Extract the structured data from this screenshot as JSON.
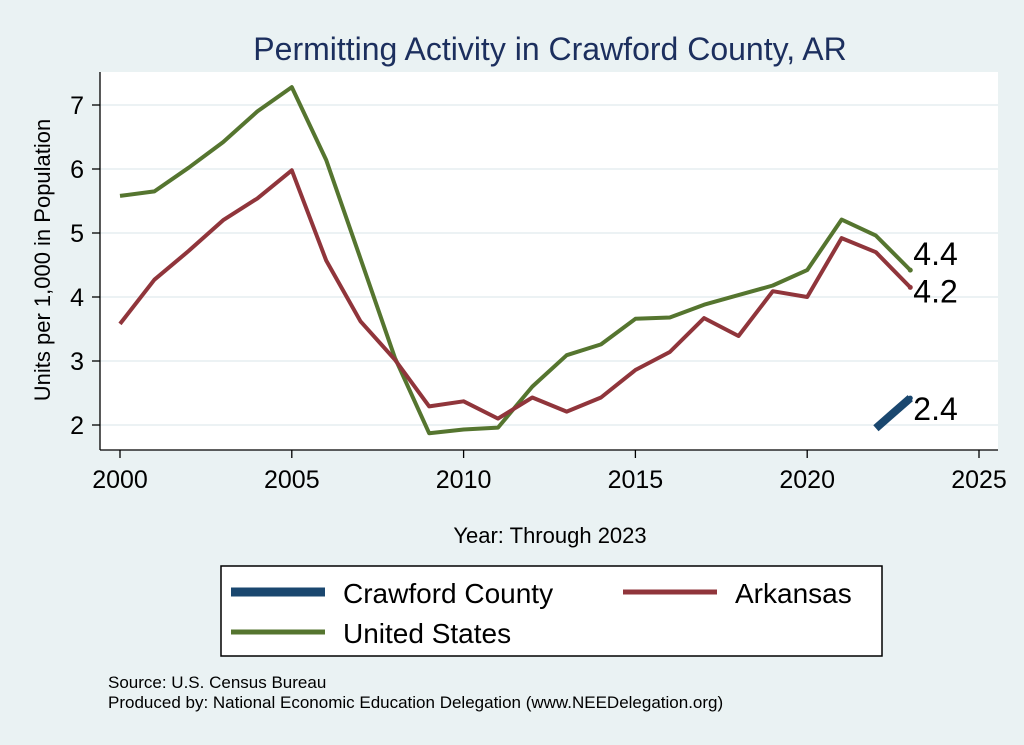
{
  "chart_data": {
    "type": "line",
    "title": "Permitting Activity in Crawford County, AR",
    "xlabel": "Year: Through 2023",
    "ylabel": "Units per 1,000 in Population",
    "xlim": [
      2000,
      2025
    ],
    "ylim": [
      1.8,
      7.4
    ],
    "x_ticks": [
      2000,
      2005,
      2010,
      2015,
      2020,
      2025
    ],
    "y_ticks": [
      2,
      3,
      4,
      5,
      6,
      7
    ],
    "grid": true,
    "legend_position": "bottom",
    "series": [
      {
        "name": "Crawford County",
        "color": "#1a476f",
        "x": [
          2022,
          2023
        ],
        "values": [
          1.95,
          2.42
        ],
        "end_label": "2.4"
      },
      {
        "name": "Arkansas",
        "color": "#90353b",
        "x": [
          2000,
          2001,
          2002,
          2003,
          2004,
          2005,
          2006,
          2007,
          2008,
          2009,
          2010,
          2011,
          2012,
          2013,
          2014,
          2015,
          2016,
          2017,
          2018,
          2019,
          2020,
          2021,
          2022,
          2023
        ],
        "values": [
          3.58,
          4.27,
          4.72,
          5.2,
          5.54,
          5.98,
          4.57,
          3.62,
          3.02,
          2.29,
          2.37,
          2.1,
          2.43,
          2.21,
          2.43,
          2.86,
          3.14,
          3.67,
          3.39,
          4.09,
          4.0,
          4.92,
          4.7,
          4.15
        ],
        "end_label": "4.2"
      },
      {
        "name": "United States",
        "color": "#55752f",
        "x": [
          2000,
          2001,
          2002,
          2003,
          2004,
          2005,
          2006,
          2007,
          2008,
          2009,
          2010,
          2011,
          2012,
          2013,
          2014,
          2015,
          2016,
          2017,
          2018,
          2019,
          2020,
          2021,
          2022,
          2023
        ],
        "values": [
          5.58,
          5.65,
          6.02,
          6.42,
          6.9,
          7.28,
          6.14,
          4.6,
          3.05,
          1.87,
          1.93,
          1.96,
          2.6,
          3.09,
          3.26,
          3.66,
          3.68,
          3.88,
          4.03,
          4.18,
          4.42,
          5.21,
          4.96,
          4.42
        ],
        "end_label": "4.4"
      }
    ],
    "legend": [
      "Crawford County",
      "Arkansas",
      "United States"
    ],
    "notes": [
      "Source: U.S. Census Bureau",
      "Produced by: National Economic Education Delegation (www.NEEDelegation.org)"
    ]
  }
}
